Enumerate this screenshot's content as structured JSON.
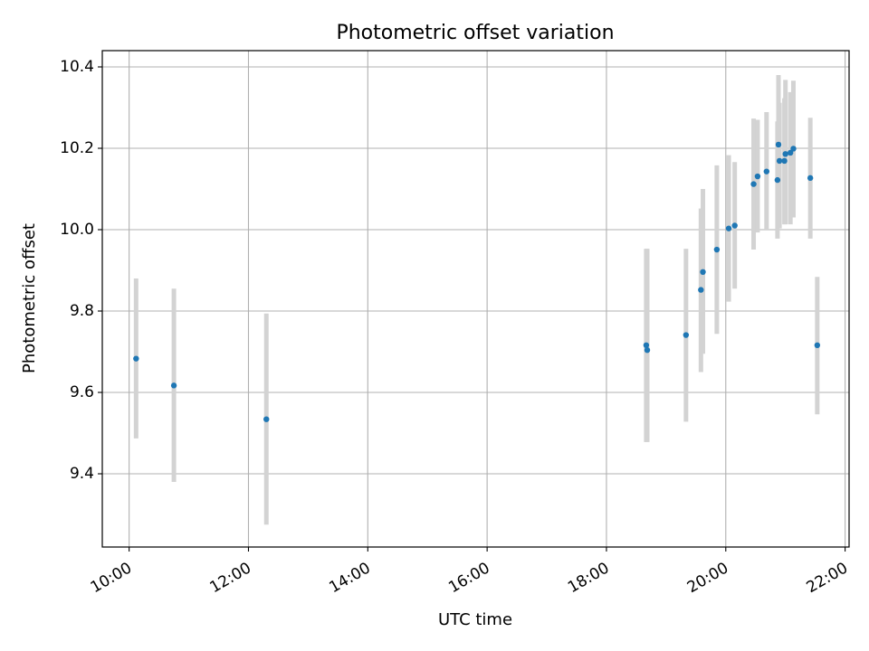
{
  "chart_data": {
    "type": "scatter",
    "title": "Photometric offset variation",
    "xlabel": "UTC time",
    "ylabel": "Photometric offset",
    "x_unit": "UTC time (HH:MM)",
    "xlim": [
      "09:33",
      "22:04"
    ],
    "ylim": [
      9.22,
      10.44
    ],
    "grid": true,
    "x_ticks": [
      "10:00",
      "12:00",
      "14:00",
      "16:00",
      "18:00",
      "20:00",
      "22:00"
    ],
    "y_ticks": [
      "9.4",
      "9.6",
      "9.8",
      "10.0",
      "10.2",
      "10.4"
    ],
    "series": [
      {
        "marker_color": "#1f77b4",
        "errorbar_color": "#d3d3d3",
        "points": [
          {
            "x": "10:07",
            "y": 9.683,
            "ylo": 9.487,
            "yhi": 9.88
          },
          {
            "x": "10:45",
            "y": 9.617,
            "ylo": 9.38,
            "yhi": 9.855
          },
          {
            "x": "12:18",
            "y": 9.534,
            "ylo": 9.275,
            "yhi": 9.794
          },
          {
            "x": "18:40",
            "y": 9.716,
            "ylo": 9.478,
            "yhi": 9.953
          },
          {
            "x": "18:41",
            "y": 9.704,
            "ylo": 9.478,
            "yhi": 9.953
          },
          {
            "x": "19:20",
            "y": 9.741,
            "ylo": 9.528,
            "yhi": 9.953
          },
          {
            "x": "19:35",
            "y": 9.852,
            "ylo": 9.65,
            "yhi": 10.052
          },
          {
            "x": "19:37",
            "y": 9.896,
            "ylo": 9.695,
            "yhi": 10.1
          },
          {
            "x": "19:51",
            "y": 9.951,
            "ylo": 9.744,
            "yhi": 10.158
          },
          {
            "x": "20:03",
            "y": 10.003,
            "ylo": 9.823,
            "yhi": 10.183
          },
          {
            "x": "20:09",
            "y": 10.01,
            "ylo": 9.855,
            "yhi": 10.166
          },
          {
            "x": "20:28",
            "y": 10.112,
            "ylo": 9.951,
            "yhi": 10.273
          },
          {
            "x": "20:32",
            "y": 10.131,
            "ylo": 9.993,
            "yhi": 10.27
          },
          {
            "x": "20:41",
            "y": 10.143,
            "ylo": 9.998,
            "yhi": 10.289
          },
          {
            "x": "20:52",
            "y": 10.122,
            "ylo": 9.978,
            "yhi": 10.266
          },
          {
            "x": "20:53",
            "y": 10.209,
            "ylo": 10.038,
            "yhi": 10.38
          },
          {
            "x": "20:54",
            "y": 10.169,
            "ylo": 10.003,
            "yhi": 10.312
          },
          {
            "x": "20:59",
            "y": 10.169,
            "ylo": 10.013,
            "yhi": 10.323
          },
          {
            "x": "21:00",
            "y": 10.186,
            "ylo": 10.013,
            "yhi": 10.368
          },
          {
            "x": "21:05",
            "y": 10.189,
            "ylo": 10.013,
            "yhi": 10.338
          },
          {
            "x": "21:08",
            "y": 10.199,
            "ylo": 10.03,
            "yhi": 10.366
          },
          {
            "x": "21:25",
            "y": 10.127,
            "ylo": 9.978,
            "yhi": 10.275
          },
          {
            "x": "21:32",
            "y": 9.716,
            "ylo": 9.546,
            "yhi": 9.884
          }
        ]
      }
    ]
  }
}
